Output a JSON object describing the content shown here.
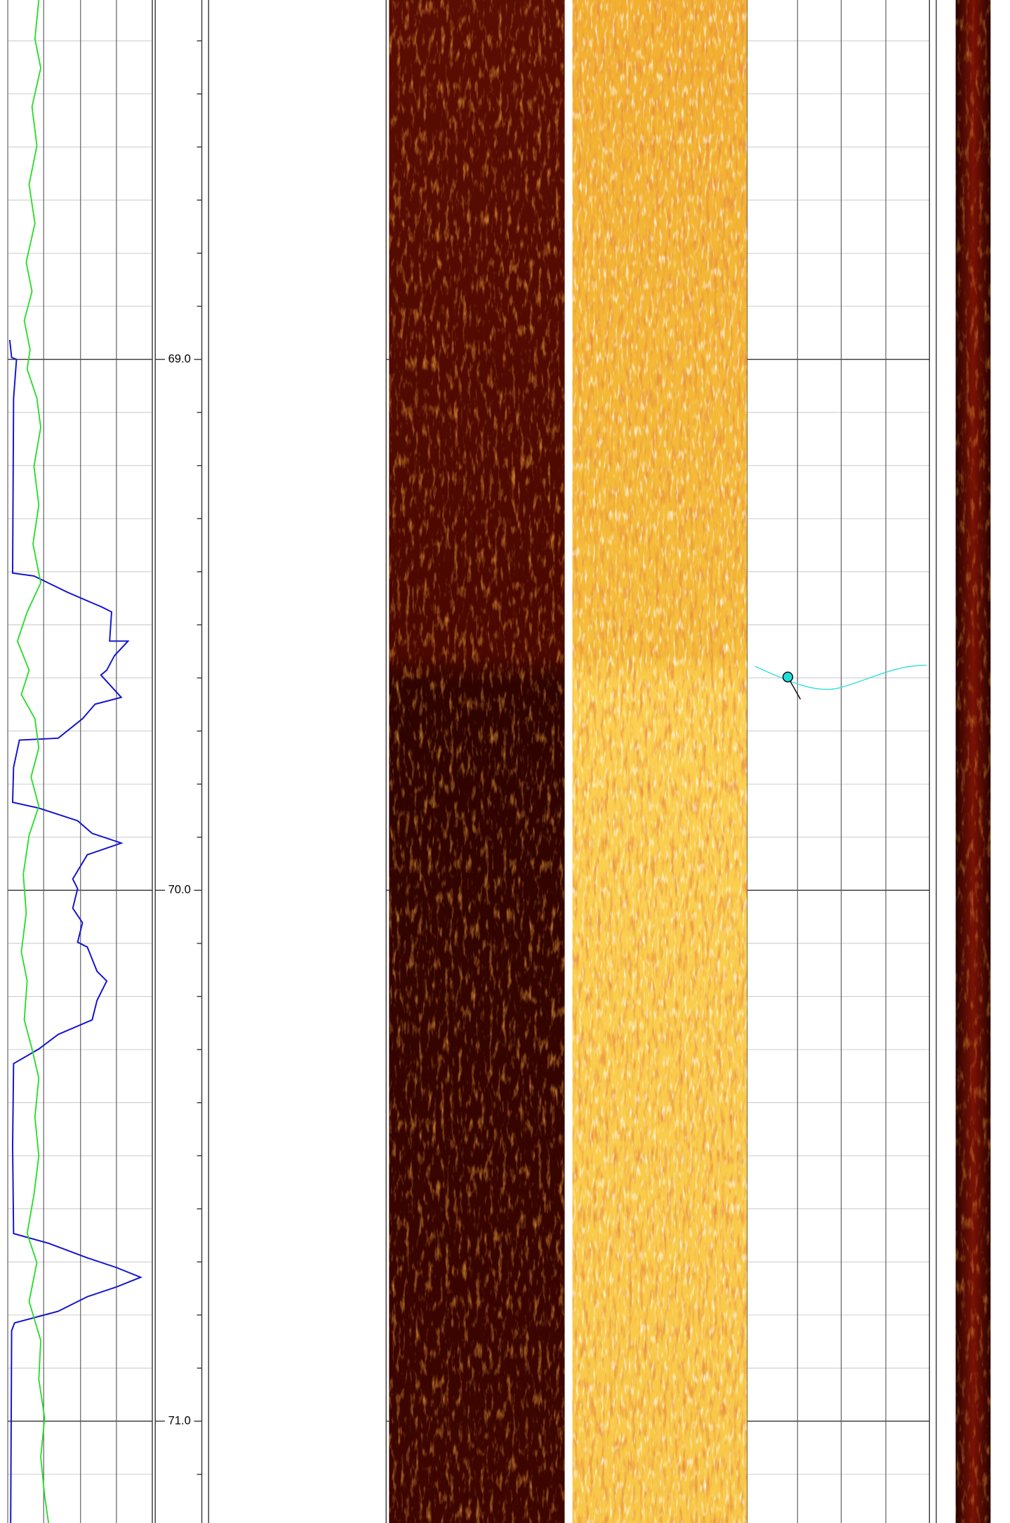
{
  "depth_track": {
    "labels": [
      "69.0",
      "70.0",
      "71.0"
    ]
  }
}
